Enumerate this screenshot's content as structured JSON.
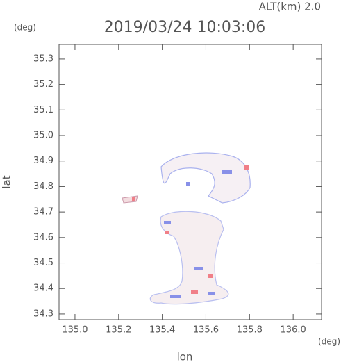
{
  "chart_data": {
    "type": "map",
    "title": "2019/03/24 10:03:06",
    "subtitle": "ALT(km) 2.0",
    "x_label": "lon",
    "y_label": "lat",
    "x_unit": "(deg)",
    "y_unit": "(deg)",
    "xlim": [
      134.927,
      136.13
    ],
    "ylim": [
      34.278,
      35.357
    ],
    "xticks": [
      {
        "value": 135,
        "label": "135.0"
      },
      135.2,
      135.4,
      135.6,
      135.8,
      {
        "value": 136,
        "label": "136.0"
      }
    ],
    "yticks": [
      34.3,
      34.4,
      34.5,
      34.6,
      34.7,
      34.8,
      34.9,
      {
        "value": 35,
        "label": "35.0"
      },
      35.1,
      35.2,
      35.3
    ]
  }
}
